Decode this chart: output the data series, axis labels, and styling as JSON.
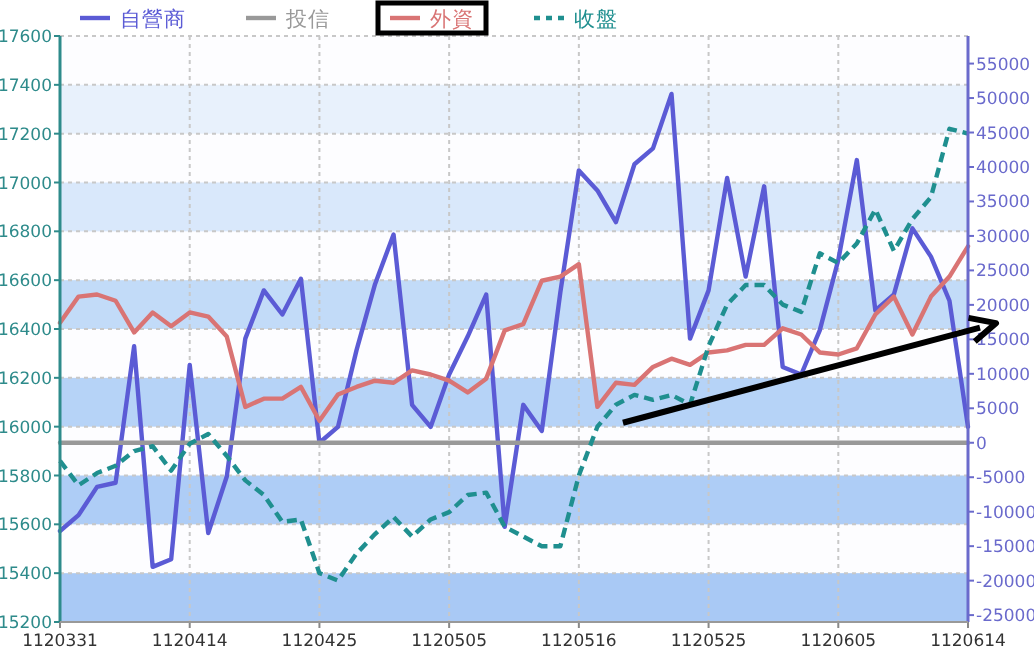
{
  "chart_data": {
    "type": "line",
    "categories": [
      "1120331",
      null,
      null,
      null,
      null,
      null,
      null,
      "1120414",
      null,
      null,
      null,
      null,
      null,
      null,
      "1120425",
      null,
      null,
      null,
      null,
      null,
      null,
      "1120505",
      null,
      null,
      null,
      null,
      null,
      null,
      "1120516",
      null,
      null,
      null,
      null,
      null,
      null,
      "1120525",
      null,
      null,
      null,
      null,
      null,
      null,
      "1120605",
      null,
      null,
      null,
      null,
      null,
      null,
      "1120614"
    ],
    "ylim": [
      15200,
      17600
    ],
    "yticks": [
      15200,
      15400,
      15600,
      15800,
      16000,
      16200,
      16400,
      16600,
      16800,
      17000,
      17200,
      17400,
      17600
    ],
    "y2lim": [
      -26000,
      59000
    ],
    "y2ticks": [
      -25000,
      -20000,
      -15000,
      -10000,
      -5000,
      0,
      5000,
      10000,
      15000,
      20000,
      25000,
      30000,
      35000,
      40000,
      45000,
      50000,
      55000
    ],
    "grid": true,
    "legend": "top",
    "marker": "none",
    "bands": [
      {
        "axis": "y",
        "from": 15200,
        "to": 15400,
        "color": "#a9c9f5"
      },
      {
        "axis": "y",
        "from": 15600,
        "to": 15800,
        "color": "#aecdf6"
      },
      {
        "axis": "y",
        "from": 16000,
        "to": 16200,
        "color": "#b6d3f7"
      },
      {
        "axis": "y",
        "from": 16400,
        "to": 16600,
        "color": "#c2dbf8"
      },
      {
        "axis": "y",
        "from": 16800,
        "to": 17000,
        "color": "#d9e8fb"
      },
      {
        "axis": "y",
        "from": 17200,
        "to": 17400,
        "color": "#e8f1fc"
      }
    ],
    "series": [
      {
        "name": "自營商",
        "color": "#5b5bd5",
        "axis": "y2",
        "values": [
          -12800,
          -10500,
          -6400,
          -5800,
          14000,
          -18000,
          -16900,
          11300,
          -13100,
          -4900,
          15100,
          22100,
          18600,
          23800,
          0,
          2300,
          13400,
          23000,
          30200,
          5500,
          2300,
          9900,
          15400,
          21500,
          -12200,
          5500,
          1700,
          21800,
          39500,
          36600,
          32000,
          40400,
          42700,
          50600,
          15100,
          22100,
          38400,
          24100,
          37200,
          11000,
          9900,
          16300,
          26500,
          41000,
          19200,
          21500,
          31100,
          27000,
          20600,
          2300
        ]
      },
      {
        "name": "投信",
        "color": "#999999",
        "axis": "y2",
        "values": [
          0,
          0,
          0,
          0,
          0,
          0,
          0,
          0,
          0,
          0,
          0,
          0,
          0,
          0,
          0,
          0,
          0,
          0,
          0,
          0,
          0,
          0,
          0,
          0,
          0,
          0,
          0,
          0,
          0,
          0,
          0,
          0,
          0,
          0,
          0,
          0,
          0,
          0,
          0,
          0,
          0,
          0,
          0,
          0,
          0,
          0,
          0,
          0,
          0,
          0
        ]
      },
      {
        "name": "外資",
        "color": "#d97474",
        "axis": "y2",
        "values": [
          17400,
          21200,
          21500,
          20600,
          16000,
          18900,
          16900,
          18900,
          18300,
          15400,
          5200,
          6400,
          6400,
          8100,
          3200,
          7000,
          8100,
          9000,
          8700,
          10500,
          9900,
          9000,
          7300,
          9300,
          16300,
          17200,
          23500,
          24100,
          25900,
          5200,
          8700,
          8400,
          11000,
          12200,
          11300,
          13100,
          13400,
          14200,
          14200,
          16600,
          15700,
          13100,
          12800,
          13700,
          18600,
          21200,
          15700,
          21200,
          24100,
          28500
        ]
      },
      {
        "name": "收盤",
        "color": "#1f8f8f",
        "line_style": "dashed",
        "values": [
          15860,
          15760,
          15810,
          15840,
          15900,
          15920,
          15820,
          15930,
          15970,
          15880,
          15780,
          15720,
          15610,
          15620,
          15400,
          15370,
          15480,
          15560,
          15630,
          15550,
          15620,
          15650,
          15720,
          15730,
          15590,
          15550,
          15510,
          15510,
          15800,
          16000,
          16090,
          16130,
          16110,
          16130,
          16090,
          16330,
          16500,
          16580,
          16580,
          16500,
          16470,
          16710,
          16670,
          16750,
          16890,
          16720,
          16850,
          16940,
          17220,
          17200
        ]
      }
    ]
  }
}
